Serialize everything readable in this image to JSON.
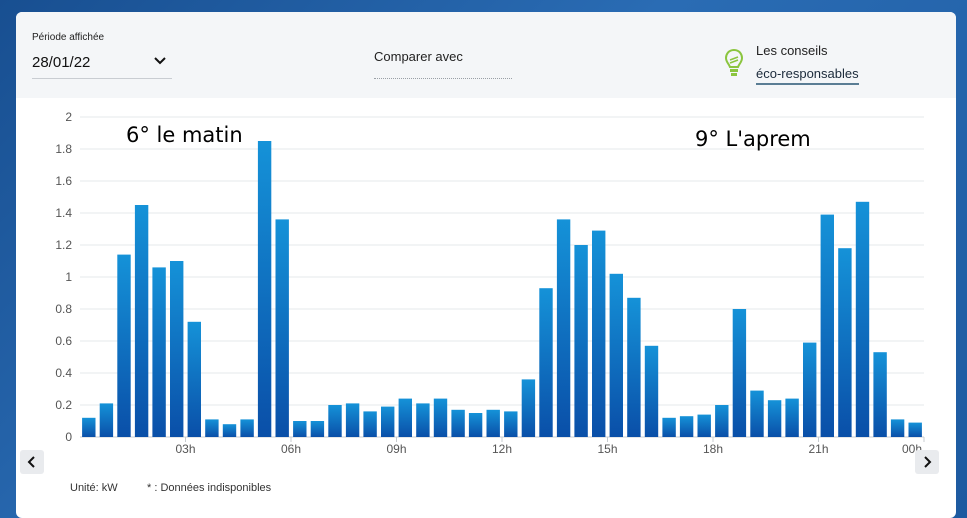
{
  "header": {
    "period_label": "Période affichée",
    "period_value": "28/01/22",
    "compare_label": "Comparer avec",
    "tips_label": "Les conseils",
    "tips_link": "éco-responsables"
  },
  "annotations": {
    "left": "6° le matin",
    "right": "9° L'aprem"
  },
  "footer": {
    "unit": "Unité: kW",
    "note": "* : Données indisponibles"
  },
  "colors": {
    "bar_top": "#1592d8",
    "bar_bottom": "#0a4fa8",
    "bulb": "#9acd32"
  },
  "chart_data": {
    "type": "bar",
    "ylim": [
      0,
      2
    ],
    "yticks": [
      "0",
      "0.2",
      "0.4",
      "0.6",
      "0.8",
      "1",
      "1.2",
      "1.4",
      "1.6",
      "1.8",
      "2"
    ],
    "xtick_labels": [
      "03h",
      "06h",
      "09h",
      "12h",
      "15h",
      "18h",
      "21h",
      "00h"
    ],
    "grid": true,
    "values": [
      0.12,
      0.21,
      1.14,
      1.45,
      1.06,
      1.1,
      0.72,
      0.11,
      0.08,
      0.11,
      1.85,
      1.36,
      0.1,
      0.1,
      0.2,
      0.21,
      0.16,
      0.19,
      0.24,
      0.21,
      0.24,
      0.17,
      0.15,
      0.17,
      0.16,
      0.36,
      0.93,
      1.36,
      1.2,
      1.29,
      1.02,
      0.87,
      0.57,
      0.12,
      0.13,
      0.14,
      0.2,
      0.8,
      0.29,
      0.23,
      0.24,
      0.59,
      1.39,
      1.18,
      1.47,
      0.53,
      0.11,
      0.09
    ]
  }
}
